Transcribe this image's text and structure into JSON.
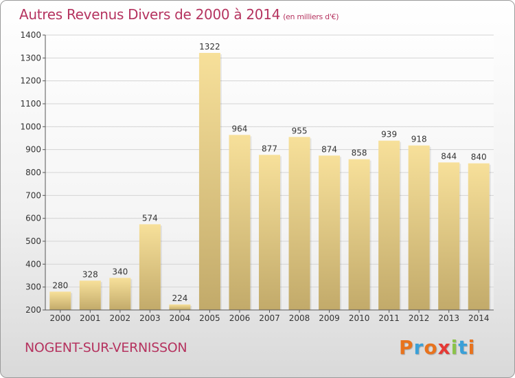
{
  "header": {
    "title": "Autres Revenus Divers de 2000 à 2014",
    "units": "(en milliers d'€)"
  },
  "footer": {
    "city": "NOGENT-SUR-VERNISSON",
    "logo": "Proxiti",
    "logo_colors": [
      "#e8731e",
      "#3aa0d8",
      "#e8731e",
      "#e53935",
      "#8bc34a",
      "#3aa0d8",
      "#e8731e"
    ]
  },
  "colors": {
    "bar_light": "#f7e09a",
    "bar_dark": "#c2aa6a",
    "axis": "#555555",
    "grid": "#d4d4d4",
    "text": "#333333",
    "accent": "#b5335f"
  },
  "chart_data": {
    "type": "bar",
    "categories": [
      "2000",
      "2001",
      "2002",
      "2003",
      "2004",
      "2005",
      "2006",
      "2007",
      "2008",
      "2009",
      "2010",
      "2011",
      "2012",
      "2013",
      "2014"
    ],
    "values": [
      280,
      328,
      340,
      574,
      224,
      1322,
      964,
      877,
      955,
      874,
      858,
      939,
      918,
      844,
      840
    ],
    "ylim": [
      200,
      1400
    ],
    "yticks": [
      200,
      300,
      400,
      500,
      600,
      700,
      800,
      900,
      1000,
      1100,
      1200,
      1300,
      1400
    ],
    "grid": true,
    "data_labels": true
  }
}
